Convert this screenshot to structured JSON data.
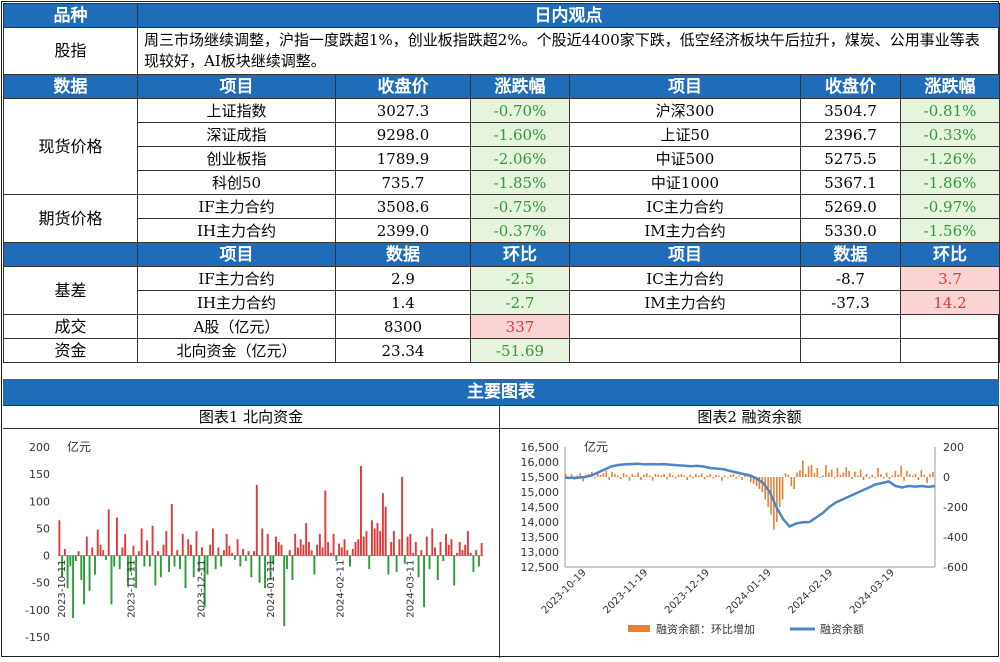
{
  "header": {
    "category_label": "品种",
    "view_label": "日内观点"
  },
  "commentary": {
    "label": "股指",
    "text": "周三市场继续调整，沪指一度跌超1%，创业板指跌超2%。个股近4400家下跌，低空经济板块午后拉升，煤炭、公用事业等表现较好，AI板块继续调整。"
  },
  "price_section": {
    "headers": [
      "数据",
      "项目",
      "收盘价",
      "涨跌幅",
      "项目",
      "收盘价",
      "涨跌幅"
    ],
    "spot_label": "现货价格",
    "futures_label": "期货价格",
    "spot_rows": [
      {
        "name_l": "上证指数",
        "close_l": "3027.3",
        "chg_l": "-0.70%",
        "name_r": "沪深300",
        "close_r": "3504.7",
        "chg_r": "-0.81%"
      },
      {
        "name_l": "深证成指",
        "close_l": "9298.0",
        "chg_l": "-1.60%",
        "name_r": "上证50",
        "close_r": "2396.7",
        "chg_r": "-0.33%"
      },
      {
        "name_l": "创业板指",
        "close_l": "1789.9",
        "chg_l": "-2.06%",
        "name_r": "中证500",
        "close_r": "5275.5",
        "chg_r": "-1.26%"
      },
      {
        "name_l": "科创50",
        "close_l": "735.7",
        "chg_l": "-1.85%",
        "name_r": "中证1000",
        "close_r": "5367.1",
        "chg_r": "-1.86%"
      }
    ],
    "futures_rows": [
      {
        "name_l": "IF主力合约",
        "close_l": "3508.6",
        "chg_l": "-0.75%",
        "name_r": "IC主力合约",
        "close_r": "5269.0",
        "chg_r": "-0.97%"
      },
      {
        "name_l": "IH主力合约",
        "close_l": "2399.0",
        "chg_l": "-0.37%",
        "name_r": "IM主力合约",
        "close_r": "5330.0",
        "chg_r": "-1.56%"
      }
    ]
  },
  "basis_section": {
    "headers": [
      "项目",
      "数据",
      "环比",
      "项目",
      "数据",
      "环比"
    ],
    "basis_label": "基差",
    "basis_rows": [
      {
        "name_l": "IF主力合约",
        "val_l": "2.9",
        "mom_l": "-2.5",
        "name_r": "IC主力合约",
        "val_r": "-8.7",
        "mom_r": "3.7"
      },
      {
        "name_l": "IH主力合约",
        "val_l": "1.4",
        "mom_l": "-2.7",
        "name_r": "IM主力合约",
        "val_r": "-37.3",
        "mom_r": "14.2"
      }
    ],
    "volume": {
      "label": "成交",
      "name": "A股（亿元）",
      "val": "8300",
      "mom": "337"
    },
    "funds": {
      "label": "资金",
      "name": "北向资金（亿元）",
      "val": "23.34",
      "mom": "-51.69"
    }
  },
  "charts_title": "主要图表",
  "colors": {
    "header_blue": "#1f6cb8",
    "up_red": "#e23a3a",
    "down_green": "#2e9a3a",
    "bar_orange": "#ec7d31",
    "line_blue": "#4a86c8"
  },
  "chart_data": [
    {
      "type": "bar",
      "title": "图表1  北向资金",
      "ylabel": "亿元",
      "ylim": [
        -150,
        200
      ],
      "yticks": [
        200,
        150,
        100,
        50,
        0,
        -50,
        -100,
        -150
      ],
      "xtick_labels": [
        "2023-10-11",
        "2023-11-11",
        "2023-12-11",
        "2024-01-11",
        "2024-02-11",
        "2024-03-11"
      ],
      "x_range": [
        "2023-10-09",
        "2024-04-10"
      ],
      "series": [
        {
          "values": [
            65,
            -40,
            12,
            -60,
            -20,
            -115,
            -10,
            8,
            -45,
            -90,
            35,
            -65,
            15,
            -35,
            48,
            20,
            10,
            -8,
            85,
            -90,
            -20,
            70,
            -25,
            15,
            40,
            -55,
            -30,
            18,
            -60,
            8,
            50,
            -20,
            28,
            -20,
            55,
            -55,
            8,
            -40,
            20,
            45,
            -30,
            95,
            -20,
            10,
            -25,
            40,
            -60,
            30,
            20,
            -40,
            45,
            -30,
            15,
            -95,
            -35,
            20,
            50,
            -25,
            15,
            -20,
            10,
            40,
            18,
            5,
            -8,
            30,
            -20,
            12,
            -10,
            8,
            -40,
            8,
            130,
            -50,
            50,
            -60,
            40,
            -45,
            -15,
            35,
            25,
            20,
            -130,
            -25,
            10,
            -45,
            40,
            15,
            30,
            20,
            60,
            25,
            10,
            -35,
            20,
            40,
            15,
            120,
            25,
            5,
            40,
            -10,
            22,
            15,
            30,
            10,
            -20,
            12,
            25,
            30,
            165,
            35,
            45,
            -25,
            65,
            50,
            60,
            45,
            115,
            90,
            -35,
            25,
            45,
            -30,
            30,
            145,
            -15,
            35,
            40,
            5,
            25,
            -40,
            10,
            -95,
            35,
            -25,
            50,
            15,
            -45,
            25,
            -10,
            40,
            20,
            30,
            -55,
            5,
            25,
            10,
            20,
            45,
            5,
            -30,
            10,
            -20,
            23
          ]
        }
      ]
    },
    {
      "type": "bar+line",
      "title": "图表2  融资余额",
      "ylabel": "亿元",
      "ylim_left": [
        12500,
        16500
      ],
      "yticks_left": [
        "16,500",
        "16,000",
        "15,500",
        "15,000",
        "14,500",
        "14,000",
        "13,500",
        "13,000",
        "12,500"
      ],
      "ylim_right": [
        -600,
        200
      ],
      "yticks_right": [
        200,
        0,
        -200,
        -400,
        -600
      ],
      "xtick_labels": [
        "2023-10-19",
        "2023-11-19",
        "2023-12-19",
        "2024-01-19",
        "2024-02-19",
        "2024-03-19"
      ],
      "x_range": [
        "2023-10-09",
        "2024-04-10"
      ],
      "series": [
        {
          "name": "融资余额：环比增加",
          "axis": "right",
          "values": [
            20,
            -15,
            18,
            -20,
            10,
            25,
            -30,
            15,
            20,
            35,
            -10,
            30,
            15,
            25,
            40,
            -20,
            35,
            20,
            10,
            -15,
            25,
            15,
            -25,
            20,
            10,
            30,
            -20,
            15,
            25,
            10,
            -25,
            20,
            15,
            10,
            20,
            -15,
            25,
            10,
            -10,
            15,
            20,
            10,
            -20,
            15,
            -10,
            20,
            10,
            25,
            -15,
            10,
            20,
            -10,
            15,
            10,
            -25,
            10,
            -5,
            15,
            20,
            -10,
            10,
            -20,
            15,
            10,
            -35,
            -45,
            -60,
            -80,
            -100,
            -150,
            -200,
            -250,
            -350,
            -300,
            -200,
            -150,
            25,
            15,
            -60,
            -80,
            30,
            45,
            110,
            20,
            70,
            80,
            25,
            60,
            -5,
            10,
            80,
            30,
            50,
            -10,
            60,
            15,
            30,
            65,
            40,
            -15,
            35,
            10,
            50,
            -20,
            20,
            -10,
            15,
            -10,
            60,
            20,
            -10,
            30,
            -15,
            10,
            40,
            15,
            75,
            -25,
            40,
            20,
            10,
            20,
            -20,
            45,
            15,
            -40,
            20,
            35
          ]
        },
        {
          "name": "融资余额",
          "axis": "left",
          "values": [
            15480,
            15470,
            15480,
            15500,
            15550,
            15650,
            15750,
            15850,
            15900,
            15920,
            15930,
            15940,
            15920,
            15930,
            15920,
            15930,
            15910,
            15890,
            15880,
            15860,
            15870,
            15850,
            15800,
            15780,
            15760,
            15700,
            15650,
            15600,
            15550,
            15450,
            15300,
            15000,
            14500,
            14100,
            13850,
            13950,
            13990,
            14000,
            14150,
            14300,
            14500,
            14650,
            14750,
            14850,
            14950,
            15050,
            15150,
            15250,
            15300,
            15350,
            15200,
            15150,
            15200,
            15180,
            15200,
            15170,
            15200
          ]
        }
      ]
    }
  ]
}
